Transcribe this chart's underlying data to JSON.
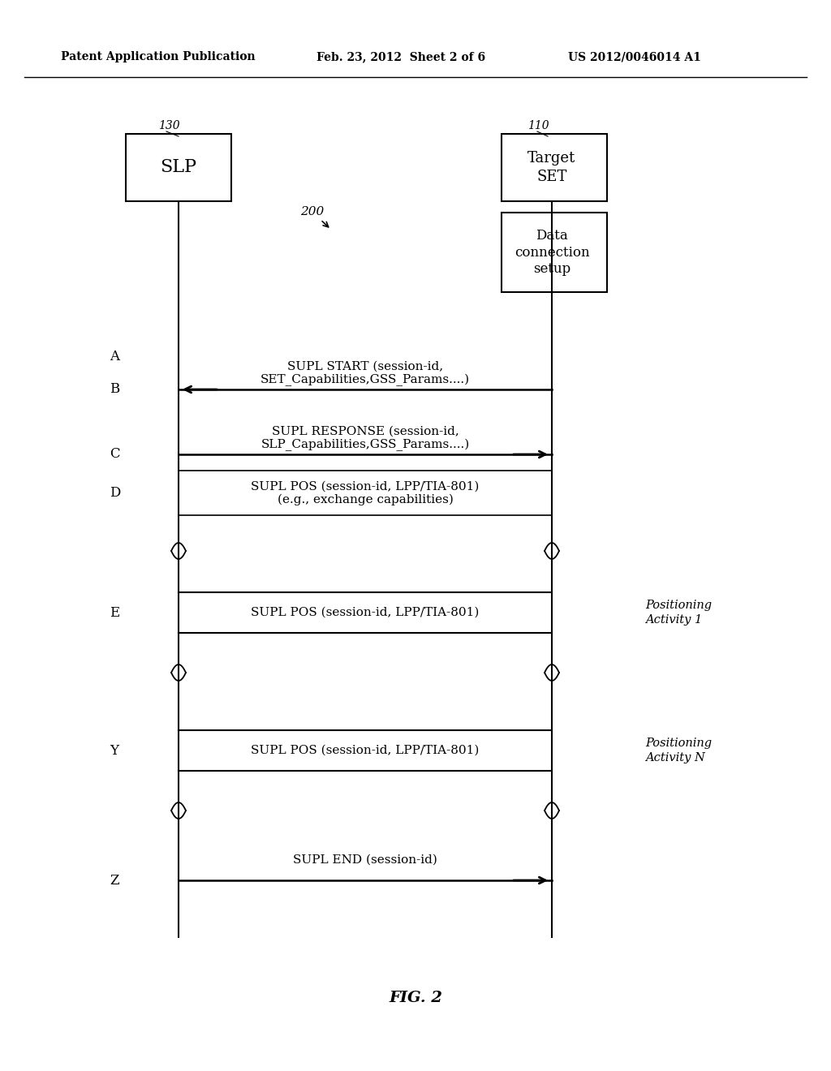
{
  "header_left": "Patent Application Publication",
  "header_mid": "Feb. 23, 2012  Sheet 2 of 6",
  "header_right": "US 2012/0046014 A1",
  "fig_label": "FIG. 2",
  "diagram_label": "200",
  "slp_label": "SLP",
  "slp_ref": "130",
  "target_label": "Target\nSET",
  "target_ref": "110",
  "data_conn_label": "Data\nconnection\nsetup",
  "background_color": "#ffffff"
}
